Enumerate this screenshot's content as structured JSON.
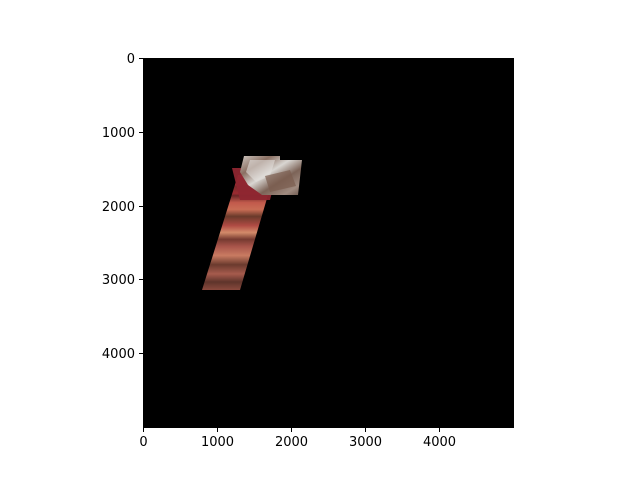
{
  "plot": {
    "type": "image",
    "background_color": "#000000",
    "x_ticks": [
      "0",
      "1000",
      "2000",
      "3000",
      "4000"
    ],
    "y_ticks": [
      "0",
      "1000",
      "2000",
      "3000",
      "4000"
    ],
    "xlim": [
      0,
      5000
    ],
    "ylim": [
      5000,
      0
    ],
    "image_content": "satellite imagery swath fragment"
  }
}
